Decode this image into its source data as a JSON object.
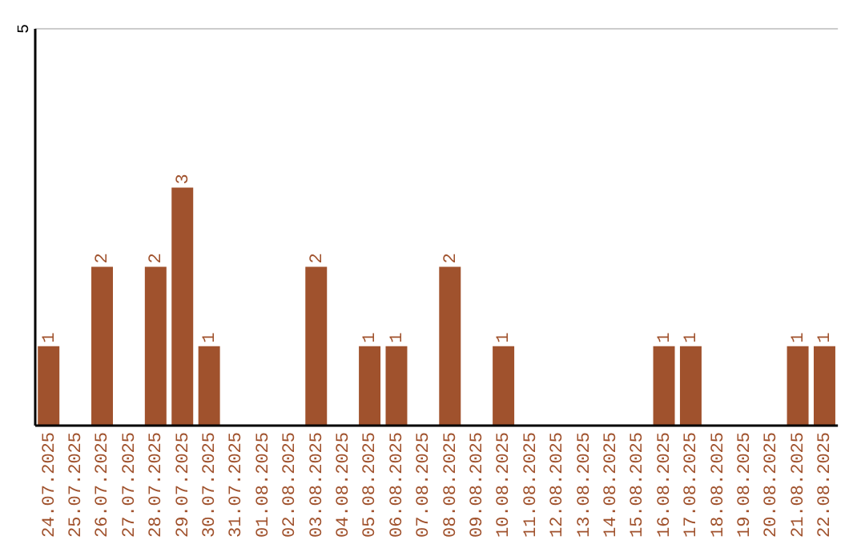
{
  "chart_data": {
    "type": "bar",
    "ylim": [
      0,
      5
    ],
    "categories": [
      "24.07.2025",
      "25.07.2025",
      "26.07.2025",
      "27.07.2025",
      "28.07.2025",
      "29.07.2025",
      "30.07.2025",
      "31.07.2025",
      "01.08.2025",
      "02.08.2025",
      "03.08.2025",
      "04.08.2025",
      "05.08.2025",
      "06.08.2025",
      "07.08.2025",
      "08.08.2025",
      "09.08.2025",
      "10.08.2025",
      "11.08.2025",
      "12.08.2025",
      "13.08.2025",
      "14.08.2025",
      "15.08.2025",
      "16.08.2025",
      "17.08.2025",
      "18.08.2025",
      "19.08.2025",
      "20.08.2025",
      "21.08.2025",
      "22.08.2025"
    ],
    "values": [
      1,
      0,
      2,
      0,
      2,
      3,
      1,
      0,
      0,
      0,
      2,
      0,
      1,
      1,
      0,
      2,
      0,
      1,
      0,
      0,
      0,
      0,
      0,
      1,
      1,
      0,
      0,
      0,
      1,
      1
    ],
    "value_labels": [
      "1",
      null,
      "2",
      null,
      "2",
      "3",
      "1",
      null,
      null,
      null,
      "2",
      null,
      "1",
      "1",
      null,
      "2",
      null,
      "1",
      null,
      null,
      null,
      null,
      null,
      "1",
      "1",
      null,
      null,
      null,
      "1",
      "1"
    ],
    "color": "#a0522d",
    "ref_lines": [
      {
        "axis": "y",
        "value": 5,
        "label": "5",
        "color": "#cccccc"
      }
    ]
  }
}
